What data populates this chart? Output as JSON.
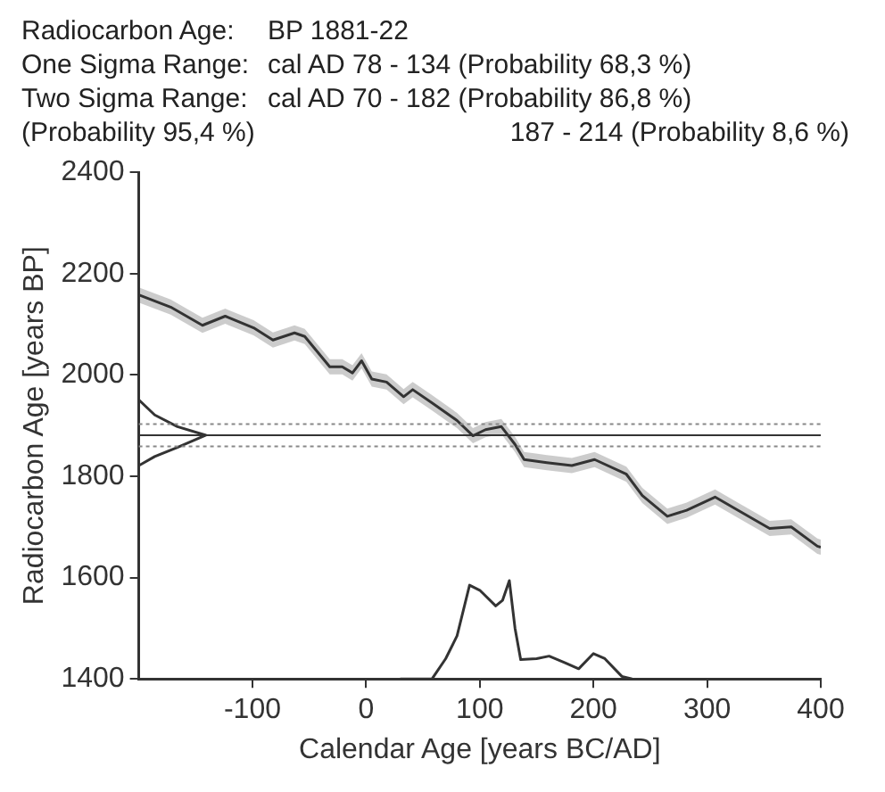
{
  "chart_data": {
    "type": "line",
    "xlabel": "Calendar Age [years BC/AD]",
    "ylabel": "Radiocarbon Age [years BP]",
    "annotations": [
      "Radiocarbon Age:",
      "BP 1881-22",
      "One Sigma Range:",
      "cal AD 78 - 134 (Probability 68,3 %)",
      "Two Sigma Range:",
      "cal AD 70 - 182 (Probability 86,8 %)",
      "(Probability 95,4 %)",
      "187 - 214 (Probability 8,6 %)"
    ],
    "xlim": [
      -200,
      400
    ],
    "xticks": [
      -100,
      0,
      100,
      200,
      300,
      400
    ],
    "ylim": [
      1400,
      2400
    ],
    "yticks": [
      1400,
      1600,
      1800,
      2000,
      2200,
      2400
    ],
    "grid": false,
    "legend": false,
    "marker": "none",
    "series": [
      {
        "color": "#333333",
        "x": [
          -200,
          -172,
          -144,
          -124,
          -99,
          -82,
          -63,
          -54,
          -32,
          -21,
          -12,
          -4,
          5,
          18,
          33,
          41,
          58,
          80,
          94,
          105,
          119,
          131,
          139,
          159,
          181,
          201,
          229,
          243,
          265,
          282,
          307,
          327,
          355,
          374,
          397,
          400
        ],
        "values": [
          2158,
          2134,
          2098,
          2116,
          2093,
          2069,
          2083,
          2076,
          2016,
          2016,
          2004,
          2028,
          1992,
          1986,
          1957,
          1971,
          1945,
          1910,
          1880,
          1892,
          1898,
          1863,
          1833,
          1827,
          1821,
          1833,
          1804,
          1762,
          1721,
          1733,
          1759,
          1733,
          1697,
          1700,
          1662,
          1660
        ],
        "lower": [
          2143,
          2119,
          2083,
          2101,
          2078,
          2054,
          2068,
          2061,
          2001,
          2001,
          1989,
          2013,
          1977,
          1971,
          1942,
          1956,
          1930,
          1895,
          1865,
          1877,
          1883,
          1848,
          1818,
          1812,
          1806,
          1818,
          1789,
          1747,
          1706,
          1718,
          1744,
          1718,
          1682,
          1685,
          1647,
          1645
        ],
        "upper": [
          2173,
          2149,
          2113,
          2131,
          2108,
          2084,
          2098,
          2091,
          2031,
          2031,
          2019,
          2043,
          2007,
          2001,
          1972,
          1986,
          1960,
          1925,
          1895,
          1907,
          1913,
          1878,
          1848,
          1842,
          1836,
          1848,
          1819,
          1777,
          1736,
          1748,
          1774,
          1748,
          1712,
          1715,
          1677,
          1675
        ]
      },
      {
        "color": "#333333",
        "x": [
          30,
          58,
          70,
          80,
          91,
          100,
          114,
          120,
          126,
          131,
          136,
          150,
          161,
          175,
          187,
          200,
          210,
          225,
          234
        ],
        "values": [
          1400,
          1400,
          1440,
          1485,
          1585,
          1575,
          1544,
          1555,
          1594,
          1500,
          1438,
          1440,
          1445,
          1432,
          1420,
          1450,
          1440,
          1405,
          1400
        ]
      },
      {
        "color": "#333333",
        "x": [
          -200,
          -186,
          -166,
          -141,
          -166,
          -186,
          -200
        ],
        "values": [
          1951,
          1921,
          1898,
          1881,
          1857,
          1839,
          1821
        ]
      }
    ],
    "ref_lines": [
      {
        "axis": "y",
        "value": 1881,
        "color": "#333333",
        "line_style": "solid"
      },
      {
        "axis": "y",
        "value": 1903,
        "color": "#888888",
        "line_style": "dotted"
      },
      {
        "axis": "y",
        "value": 1859,
        "color": "#888888",
        "line_style": "dotted"
      }
    ]
  }
}
